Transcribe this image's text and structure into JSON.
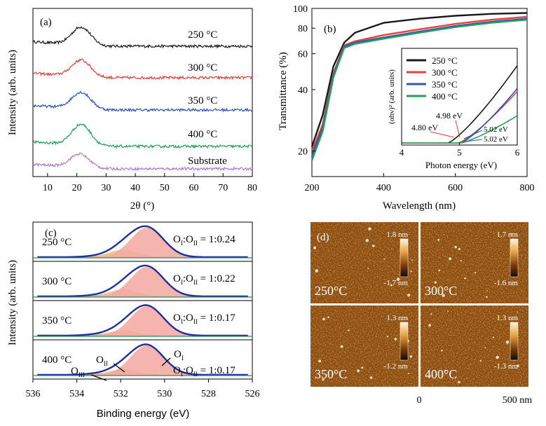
{
  "colors": {
    "c250": "#1a1a1a",
    "c300": "#e8403a",
    "c350": "#2f56b5",
    "c400": "#23a05a",
    "substrate": "#b07ad0",
    "xps_fill": "#f3a8a0",
    "xps_fit": "#1f2fa0"
  },
  "chart_data": [
    {
      "panel_label": "(a)",
      "type": "line",
      "xlabel": "2θ (°)",
      "ylabel": "Intensity (arb. units)",
      "xlim": [
        5,
        80
      ],
      "x_ticks": [
        "10",
        "20",
        "30",
        "40",
        "50",
        "60",
        "70",
        "80"
      ],
      "series": [
        {
          "name": "250 °C",
          "peak_center_deg": 21.5,
          "baseline": 0.05,
          "peak_height": 0.6
        },
        {
          "name": "300 °C",
          "peak_center_deg": 21.5,
          "baseline": 0.05,
          "peak_height": 0.55
        },
        {
          "name": "350 °C",
          "peak_center_deg": 21.5,
          "baseline": 0.05,
          "peak_height": 0.55
        },
        {
          "name": "400 °C",
          "peak_center_deg": 21.5,
          "baseline": 0.05,
          "peak_height": 0.7
        },
        {
          "name": "Substrate",
          "peak_center_deg": 21.0,
          "baseline": 0.05,
          "peak_height": 0.45
        }
      ]
    },
    {
      "panel_label": "(b)",
      "type": "line",
      "xlabel": "Wavelength (nm)",
      "ylabel": "Transmittance (%)",
      "xlim": [
        200,
        800
      ],
      "ylim": [
        15,
        100
      ],
      "y_scale": "log",
      "x_ticks": [
        "200",
        "400",
        "600",
        "800"
      ],
      "y_ticks": [
        "20",
        "40",
        "60",
        "80",
        "100"
      ],
      "series": [
        {
          "name": "250 °C",
          "x": [
            200,
            230,
            260,
            290,
            320,
            400,
            500,
            600,
            700,
            800
          ],
          "y": [
            21,
            30,
            52,
            68,
            76,
            85,
            89,
            92,
            94,
            95
          ]
        },
        {
          "name": "300 °C",
          "x": [
            200,
            230,
            260,
            290,
            320,
            400,
            500,
            600,
            700,
            800
          ],
          "y": [
            20,
            27,
            48,
            66,
            69,
            74,
            79,
            84,
            88,
            91
          ]
        },
        {
          "name": "350 °C",
          "x": [
            200,
            230,
            260,
            290,
            320,
            400,
            500,
            600,
            700,
            800
          ],
          "y": [
            19,
            26,
            47,
            65,
            68,
            72,
            77,
            82,
            86,
            89
          ]
        },
        {
          "name": "400 °C",
          "x": [
            200,
            230,
            260,
            290,
            320,
            400,
            500,
            600,
            700,
            800
          ],
          "y": [
            18,
            25,
            46,
            64,
            67,
            71,
            76,
            81,
            85,
            88
          ]
        }
      ],
      "inset": {
        "type": "line",
        "xlabel": "Photon energy (eV)",
        "ylabel": "(αhν)² (arb. units)",
        "xlim": [
          4,
          6
        ],
        "x_ticks": [
          "4",
          "5",
          "6"
        ],
        "legend": [
          "250 °C",
          "300 °C",
          "350 °C",
          "400 °C"
        ],
        "annotations": [
          "4.80 eV",
          "4.98 eV",
          "5.02 eV",
          "5.02 eV"
        ],
        "gap_eV": [
          4.8,
          4.98,
          5.02,
          5.02
        ]
      }
    },
    {
      "panel_label": "(c)",
      "type": "line",
      "xlabel": "Binding energy (eV)",
      "ylabel": "Intensity (arb. units)",
      "xlim": [
        536,
        526
      ],
      "x_ticks": [
        "536",
        "534",
        "532",
        "530",
        "528",
        "526"
      ],
      "rows": [
        {
          "temp": "250  °C",
          "ratio_prefix": "O",
          "ratio_sub1": "I",
          "ratio_sep": ":O",
          "ratio_sub2": "II",
          "ratio_value": " = 1:0.24",
          "ratio": 0.24
        },
        {
          "temp": "300  °C",
          "ratio_prefix": "O",
          "ratio_sub1": "I",
          "ratio_sep": ":O",
          "ratio_sub2": "II",
          "ratio_value": " = 1:0.22",
          "ratio": 0.22
        },
        {
          "temp": "350  °C",
          "ratio_prefix": "O",
          "ratio_sub1": "I",
          "ratio_sep": ":O",
          "ratio_sub2": "II",
          "ratio_value": " = 1:0.17",
          "ratio": 0.17
        },
        {
          "temp": "400  °C",
          "ratio_prefix": "O",
          "ratio_sub1": "I",
          "ratio_sep": ":O",
          "ratio_sub2": "II",
          "ratio_value": " = 1:0.17",
          "ratio": 0.17
        }
      ],
      "peak_labels": {
        "o1": "O",
        "o1_sub": "I",
        "o2": "O",
        "o2_sub": "II",
        "o3": "O",
        "o3_sub": "III"
      },
      "peaks_eV": {
        "OI": 530.8,
        "OII": 531.9,
        "OIII": 532.8
      }
    },
    {
      "panel_label": "(d)",
      "type": "heatmap",
      "tiles": [
        {
          "label": "250°C",
          "top": "1.8 nm",
          "bottom": "-1.7 nm"
        },
        {
          "label": "300°C",
          "top": "1.7 nm",
          "bottom": "-1.6 nm"
        },
        {
          "label": "350°C",
          "top": "1.3 nm",
          "bottom": "-1.2 nm"
        },
        {
          "label": "400°C",
          "top": "1.3 nm",
          "bottom": "-1.3 nm"
        }
      ],
      "scale_start": "0",
      "scale_end": "500 nm"
    }
  ]
}
